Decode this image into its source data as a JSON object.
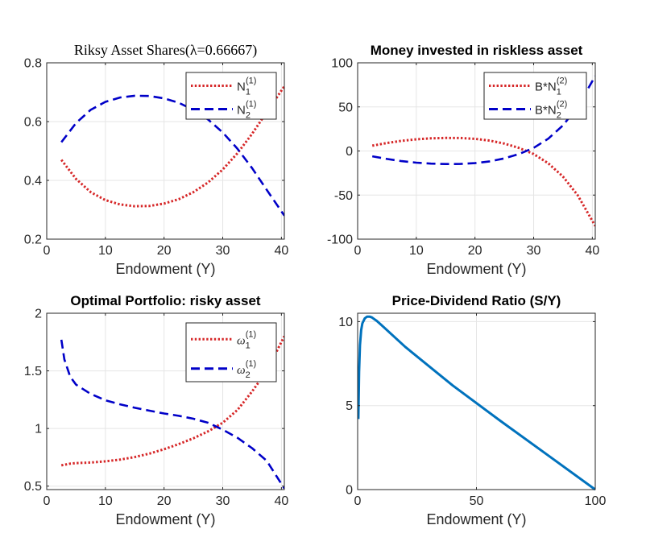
{
  "figure": {
    "background": "#ffffff",
    "grid_color": "#e5e5e5",
    "axis_color": "#262626",
    "legend_border": "#262626"
  },
  "chart_data": [
    {
      "type": "line",
      "title": "Riksy Asset Shares(λ=0.66667)",
      "title_style": "serif",
      "xlabel": "Endowment (Y)",
      "ylabel": "",
      "xlim": [
        0,
        40.5
      ],
      "ylim": [
        0.2,
        0.8
      ],
      "xticks": [
        0,
        10,
        20,
        30,
        40
      ],
      "yticks": [
        0.2,
        0.4,
        0.6,
        0.8
      ],
      "grid": true,
      "legend_position": "top-right",
      "series": [
        {
          "name": "N1(1)",
          "legend_main": "N",
          "legend_sub": "1",
          "legend_sup": "(1)",
          "color": "#d62728",
          "style": "dotted",
          "x": [
            2.5,
            5,
            7.5,
            10,
            12.5,
            15,
            17.5,
            20,
            22.5,
            25,
            27.5,
            30,
            32.5,
            35,
            37.5,
            40.5
          ],
          "y": [
            0.47,
            0.405,
            0.36,
            0.333,
            0.318,
            0.312,
            0.313,
            0.321,
            0.336,
            0.36,
            0.393,
            0.437,
            0.492,
            0.558,
            0.632,
            0.72
          ]
        },
        {
          "name": "N2(1)",
          "legend_main": "N",
          "legend_sub": "2",
          "legend_sup": "(1)",
          "color": "#0000c8",
          "style": "dashed",
          "x": [
            2.5,
            5,
            7.5,
            10,
            12.5,
            15,
            17.5,
            20,
            22.5,
            25,
            27.5,
            30,
            32.5,
            35,
            37.5,
            40.5
          ],
          "y": [
            0.53,
            0.595,
            0.64,
            0.667,
            0.682,
            0.688,
            0.687,
            0.679,
            0.664,
            0.64,
            0.607,
            0.563,
            0.508,
            0.442,
            0.368,
            0.28
          ]
        }
      ]
    },
    {
      "type": "line",
      "title": "Money invested in riskless asset",
      "xlabel": "Endowment (Y)",
      "ylabel": "",
      "xlim": [
        0,
        40.5
      ],
      "ylim": [
        -100,
        100
      ],
      "xticks": [
        0,
        10,
        20,
        30,
        40
      ],
      "yticks": [
        -100,
        -50,
        0,
        50,
        100
      ],
      "grid": true,
      "legend_position": "top-right",
      "series": [
        {
          "name": "B*N1(2)",
          "legend_main": "B*N",
          "legend_sub": "1",
          "legend_sup": "(2)",
          "color": "#d62728",
          "style": "dotted",
          "x": [
            2.5,
            5,
            7.5,
            10,
            12.5,
            15,
            17.5,
            20,
            22.5,
            25,
            27.5,
            30,
            32.5,
            35,
            37.5,
            40.5
          ],
          "y": [
            6,
            9,
            11.5,
            13.2,
            14.3,
            14.8,
            14.7,
            13.8,
            11.8,
            8.4,
            3.5,
            -3.5,
            -14,
            -29,
            -50,
            -85
          ]
        },
        {
          "name": "B*N2(2)",
          "legend_main": "B*N",
          "legend_sub": "2",
          "legend_sup": "(2)",
          "color": "#0000c8",
          "style": "dashed",
          "x": [
            2.5,
            5,
            7.5,
            10,
            12.5,
            15,
            17.5,
            20,
            22.5,
            25,
            27.5,
            30,
            32.5,
            35,
            37.5,
            40.5
          ],
          "y": [
            -6,
            -9,
            -11.5,
            -13.2,
            -14.3,
            -14.8,
            -14.7,
            -13.8,
            -11.8,
            -8.4,
            -3.5,
            3.5,
            14,
            29,
            50,
            85
          ]
        }
      ]
    },
    {
      "type": "line",
      "title": "Optimal Portfolio: risky asset",
      "xlabel": "Endowment (Y)",
      "ylabel": "",
      "xlim": [
        0,
        40.5
      ],
      "ylim": [
        0.47,
        2
      ],
      "xticks": [
        0,
        10,
        20,
        30,
        40
      ],
      "yticks": [
        0.5,
        1,
        1.5,
        2
      ],
      "grid": true,
      "legend_position": "top-right",
      "series": [
        {
          "name": "ω1(1)",
          "legend_main": "ω",
          "legend_sub": "1",
          "legend_sup": "(1)",
          "color": "#d62728",
          "style": "dotted",
          "x": [
            2.5,
            4,
            5,
            7.5,
            10,
            12.5,
            15,
            17.5,
            20,
            22.5,
            25,
            27.5,
            30,
            32.5,
            35,
            37.5,
            40.5
          ],
          "y": [
            0.68,
            0.695,
            0.7,
            0.705,
            0.715,
            0.73,
            0.752,
            0.782,
            0.82,
            0.865,
            0.915,
            0.975,
            1.05,
            1.16,
            1.32,
            1.5,
            1.8
          ]
        },
        {
          "name": "ω2(1)",
          "legend_main": "ω",
          "legend_sub": "2",
          "legend_sup": "(1)",
          "color": "#0000c8",
          "style": "dashed",
          "x": [
            2.5,
            3,
            4,
            5,
            7.5,
            10,
            12.5,
            15,
            17.5,
            20,
            22.5,
            25,
            27.5,
            30,
            32.5,
            35,
            37.5,
            40.5
          ],
          "y": [
            1.77,
            1.6,
            1.45,
            1.38,
            1.3,
            1.245,
            1.21,
            1.18,
            1.155,
            1.13,
            1.11,
            1.085,
            1.05,
            0.99,
            0.92,
            0.83,
            0.72,
            0.48
          ]
        }
      ]
    },
    {
      "type": "line",
      "title": "Price-Dividend Ratio (S/Y)",
      "xlabel": "Endowment (Y)",
      "ylabel": "",
      "xlim": [
        0,
        100
      ],
      "ylim": [
        0,
        10.5
      ],
      "xticks": [
        0,
        50,
        100
      ],
      "yticks": [
        0,
        5,
        10
      ],
      "grid": true,
      "series": [
        {
          "name": "",
          "color": "#0072bd",
          "style": "solid",
          "x": [
            0.3,
            0.6,
            1,
            1.5,
            2,
            3,
            4,
            5,
            6,
            7,
            8,
            10,
            20,
            40,
            60,
            80,
            100
          ],
          "y": [
            4.2,
            7.0,
            8.6,
            9.5,
            9.9,
            10.2,
            10.3,
            10.3,
            10.25,
            10.15,
            10.05,
            9.8,
            8.5,
            6.2,
            4.1,
            2.05,
            0
          ]
        }
      ]
    }
  ]
}
